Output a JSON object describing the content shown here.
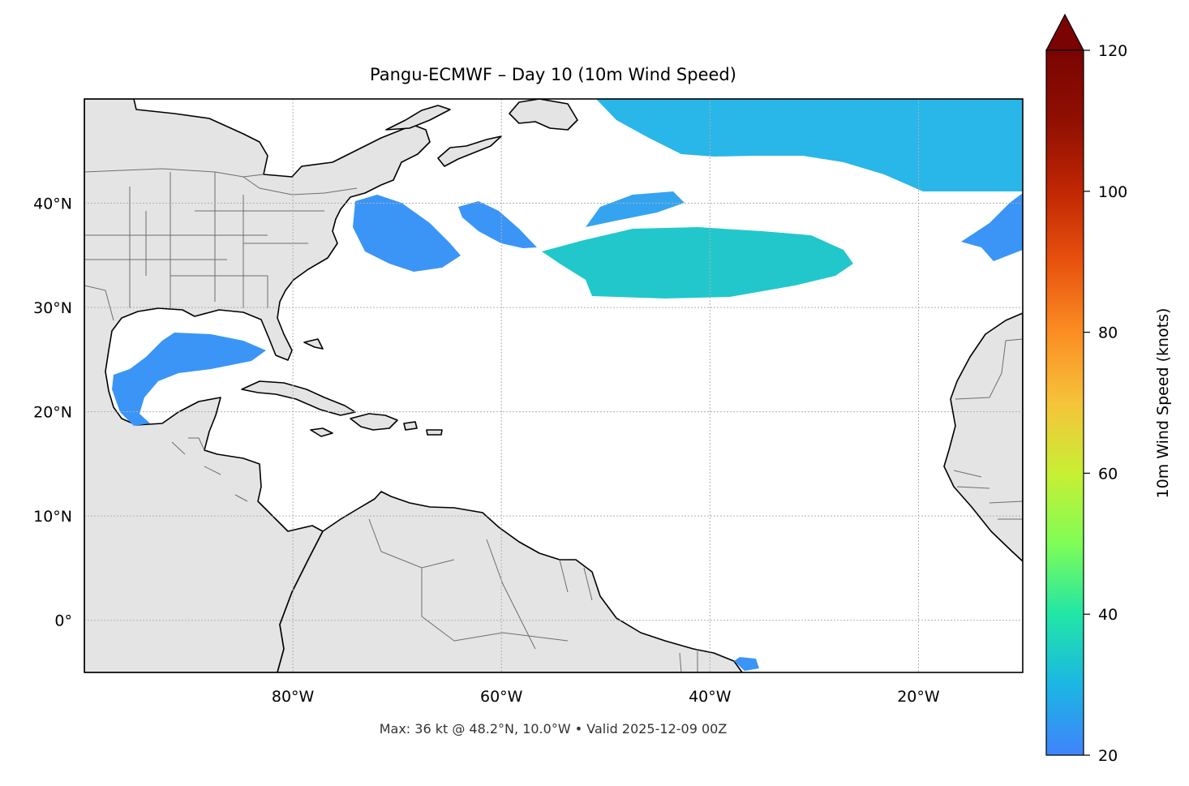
{
  "title": "Pangu-ECMWF – Day 10 (10m Wind Speed)",
  "footer": "Max: 36 kt @ 48.2°N, 10.0°W • Valid 2025-12-09 00Z",
  "map": {
    "extent": {
      "lon_min": -100,
      "lon_max": -10,
      "lat_min": -5,
      "lat_max": 50
    },
    "lat_ticks": [
      {
        "value": 40,
        "label": "40°N"
      },
      {
        "value": 30,
        "label": "30°N"
      },
      {
        "value": 20,
        "label": "20°N"
      },
      {
        "value": 10,
        "label": "10°N"
      },
      {
        "value": 0,
        "label": "0°"
      }
    ],
    "lon_ticks": [
      {
        "value": -80,
        "label": "80°W"
      },
      {
        "value": -60,
        "label": "60°W"
      },
      {
        "value": -40,
        "label": "40°W"
      },
      {
        "value": -20,
        "label": "20°W"
      }
    ],
    "gridlines": true,
    "land_color": "#e4e4e4",
    "ocean_color": "#ffffff",
    "coastline_color": "#000000",
    "border_color": "#6e6e6e"
  },
  "colorbar": {
    "label": "10m Wind Speed (knots)",
    "min": 20,
    "max": 120,
    "extend": "max",
    "ticks": [
      {
        "value": 20,
        "label": "20"
      },
      {
        "value": 40,
        "label": "40"
      },
      {
        "value": 60,
        "label": "60"
      },
      {
        "value": 80,
        "label": "80"
      },
      {
        "value": 100,
        "label": "100"
      },
      {
        "value": 120,
        "label": "120"
      }
    ],
    "colormap": [
      "#3f83fb",
      "#1bb6e3",
      "#21e6a5",
      "#7ffd56",
      "#c8ef34",
      "#f6c33a",
      "#fb8d23",
      "#e8520e",
      "#c02704",
      "#900f01",
      "#7a0403"
    ]
  },
  "wind_max": {
    "value_kt": 36,
    "lat": 48.2,
    "lon": -10.0
  }
}
